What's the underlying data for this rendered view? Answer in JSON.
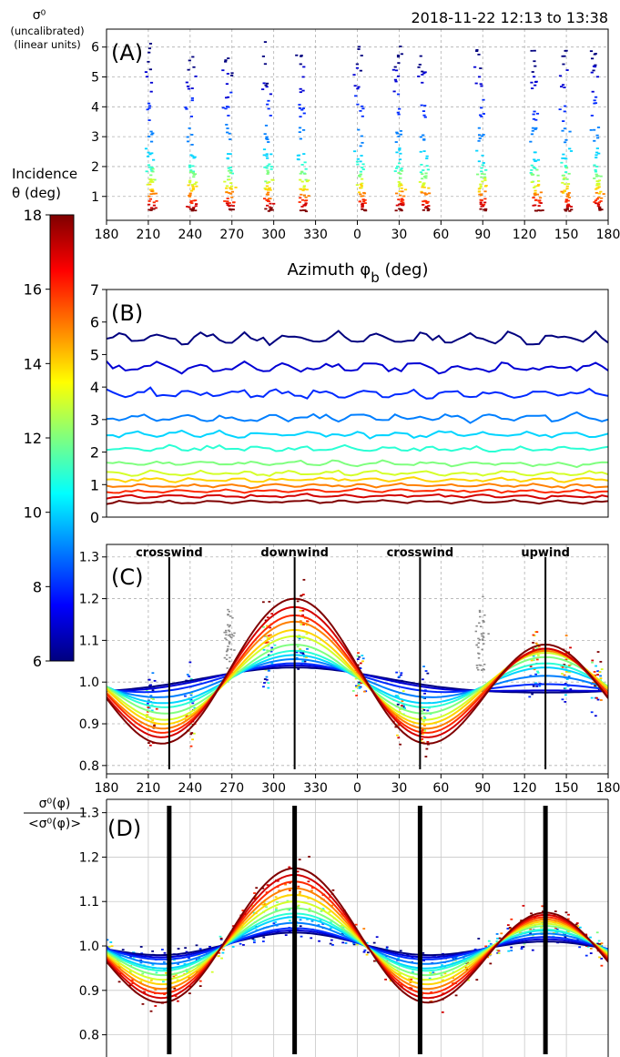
{
  "header": {
    "timestamp": "2018-11-22 12:13 to 13:38"
  },
  "colorbar": {
    "title_line1": "Incidence",
    "title_line2": "θ (deg)",
    "ticks": [
      "18",
      "16",
      "14",
      "12",
      "10",
      "8",
      "6"
    ],
    "range": [
      6,
      18
    ],
    "colormap": "jet",
    "colors": [
      "#00007f",
      "#0000ff",
      "#007fff",
      "#00ffff",
      "#7fff7f",
      "#ffff00",
      "#ff7f00",
      "#ff0000",
      "#7f0000"
    ]
  },
  "panels": {
    "a": {
      "label": "(A)",
      "ylabel_line1": "σ⁰",
      "ylabel_line2": "(uncalibrated)",
      "ylabel_line3": "(linear units)",
      "xlabel": "Azimuth  φ",
      "xlabel_sub": "b",
      "xlabel_unit": " (deg)",
      "xticks": [
        "180",
        "210",
        "240",
        "270",
        "300",
        "330",
        "0",
        "30",
        "60",
        "90",
        "120",
        "150",
        "180"
      ],
      "yticks": [
        "1",
        "2",
        "3",
        "4",
        "5",
        "6"
      ]
    },
    "b": {
      "label": "(B)",
      "yticks": [
        "0",
        "1",
        "2",
        "3",
        "4",
        "5",
        "6",
        "7"
      ]
    },
    "c": {
      "label": "(C)",
      "xticks": [
        "180",
        "210",
        "240",
        "270",
        "300",
        "330",
        "0",
        "30",
        "60",
        "90",
        "120",
        "150",
        "180"
      ],
      "yticks": [
        "0.8",
        "0.9",
        "1.0",
        "1.1",
        "1.2",
        "1.3"
      ],
      "annotations": [
        "crosswind",
        "downwind",
        "crosswind",
        "upwind"
      ]
    },
    "d": {
      "label": "(D)",
      "ylabel_num": "σ⁰(φ)",
      "ylabel_den": "<σ⁰(φ)>",
      "yticks": [
        "0.8",
        "0.9",
        "1.0",
        "1.1",
        "1.2",
        "1.3"
      ]
    }
  },
  "chart_data": [
    {
      "panel": "A",
      "type": "scatter",
      "xlabel": "Azimuth φb (deg)",
      "ylabel": "σ0 (uncalibrated) (linear units)",
      "xlim": [
        0,
        360
      ],
      "ylim": [
        0.2,
        6.6
      ],
      "grid": true,
      "note": "x axis runs 180→360/0→180 deg; clusters of points at these azimuths (deg, plot order)",
      "cluster_azimuths": [
        212,
        241,
        268,
        296,
        321,
        2,
        30,
        48,
        89,
        128,
        150,
        172
      ],
      "incidence_levels": [
        6,
        7,
        8,
        9,
        10,
        11,
        12,
        13,
        14,
        15,
        16,
        17,
        18
      ],
      "sigma0_at_levels": [
        5.55,
        4.85,
        3.95,
        3.05,
        2.35,
        1.95,
        1.7,
        1.45,
        1.25,
        1.05,
        0.85,
        0.7,
        0.55
      ]
    },
    {
      "panel": "B",
      "type": "line",
      "xlim": [
        180,
        540
      ],
      "ylim": [
        0,
        7
      ],
      "grid": false,
      "series_levels": [
        6,
        7,
        8,
        9,
        10,
        11,
        12,
        13,
        14,
        15,
        16,
        17,
        18
      ],
      "series_means": [
        5.5,
        4.6,
        3.8,
        3.05,
        2.55,
        2.1,
        1.65,
        1.35,
        1.15,
        0.95,
        0.78,
        0.62,
        0.45
      ]
    },
    {
      "panel": "C",
      "type": "line",
      "xlim": [
        180,
        540
      ],
      "ylim": [
        0.78,
        1.33
      ],
      "grid": true,
      "wind_direction_lines_deg": [
        225,
        315,
        45,
        135
      ],
      "model": "1 + A1*cos(phi - 315) + A2*cos(2*(phi - 315))",
      "series": [
        {
          "incidence": 6,
          "A1": 0.03,
          "A2": 0.005
        },
        {
          "incidence": 7,
          "A1": 0.03,
          "A2": 0.01
        },
        {
          "incidence": 8,
          "A1": 0.025,
          "A2": 0.02
        },
        {
          "incidence": 9,
          "A1": 0.02,
          "A2": 0.035
        },
        {
          "incidence": 10,
          "A1": 0.015,
          "A2": 0.05
        },
        {
          "incidence": 11,
          "A1": 0.015,
          "A2": 0.06
        },
        {
          "incidence": 12,
          "A1": 0.015,
          "A2": 0.075
        },
        {
          "incidence": 13,
          "A1": 0.02,
          "A2": 0.09
        },
        {
          "incidence": 14,
          "A1": 0.025,
          "A2": 0.1
        },
        {
          "incidence": 15,
          "A1": 0.035,
          "A2": 0.11
        },
        {
          "incidence": 16,
          "A1": 0.04,
          "A2": 0.12
        },
        {
          "incidence": 17,
          "A1": 0.05,
          "A2": 0.13
        },
        {
          "incidence": 18,
          "A1": 0.055,
          "A2": 0.145
        }
      ]
    },
    {
      "panel": "D",
      "type": "line",
      "xlim": [
        180,
        540
      ],
      "ylim": [
        0.75,
        1.33
      ],
      "grid": true,
      "wind_direction_lines_deg": [
        225,
        315,
        45,
        135
      ],
      "model": "1 + A1*cos(phi - 315) + A2*cos(2*(phi - 315))",
      "series": [
        {
          "incidence": 6,
          "A1": 0.01,
          "A2": 0.02
        },
        {
          "incidence": 7,
          "A1": 0.01,
          "A2": 0.025
        },
        {
          "incidence": 8,
          "A1": 0.01,
          "A2": 0.03
        },
        {
          "incidence": 9,
          "A1": 0.012,
          "A2": 0.04
        },
        {
          "incidence": 10,
          "A1": 0.015,
          "A2": 0.05
        },
        {
          "incidence": 11,
          "A1": 0.018,
          "A2": 0.055
        },
        {
          "incidence": 12,
          "A1": 0.02,
          "A2": 0.065
        },
        {
          "incidence": 13,
          "A1": 0.025,
          "A2": 0.075
        },
        {
          "incidence": 14,
          "A1": 0.03,
          "A2": 0.085
        },
        {
          "incidence": 15,
          "A1": 0.035,
          "A2": 0.095
        },
        {
          "incidence": 16,
          "A1": 0.04,
          "A2": 0.105
        },
        {
          "incidence": 17,
          "A1": 0.045,
          "A2": 0.115
        },
        {
          "incidence": 18,
          "A1": 0.05,
          "A2": 0.125
        }
      ]
    }
  ]
}
